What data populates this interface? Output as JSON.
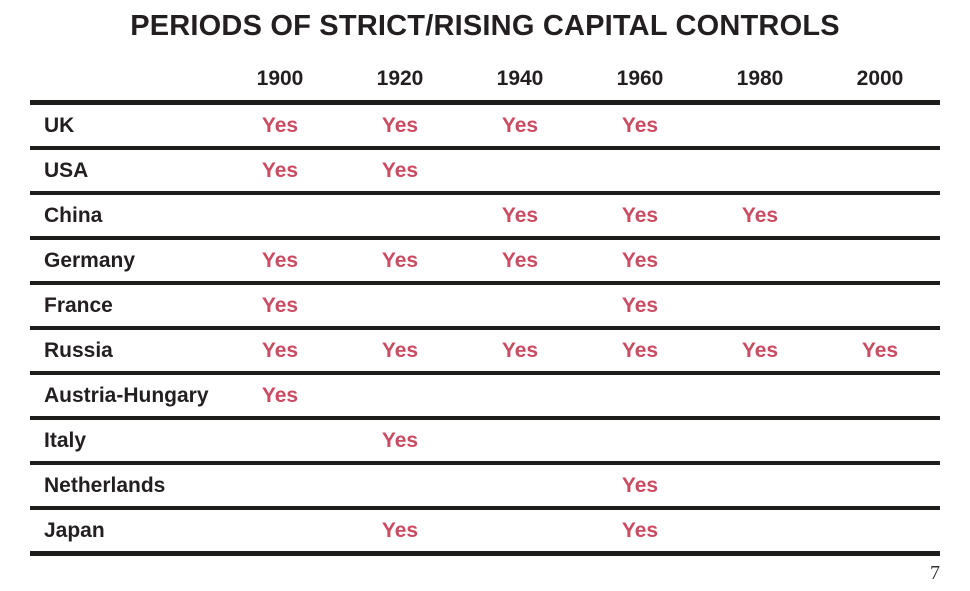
{
  "title": "PERIODS OF STRICT/RISING CAPITAL CONTROLS",
  "page_number": "7",
  "colors": {
    "yes_text": "#cb4b62",
    "heading_text": "#231f20",
    "rule_line": "#1d1d1b",
    "background": "#ffffff"
  },
  "chart_data": {
    "type": "table",
    "title": "PERIODS OF STRICT/RISING CAPITAL CONTROLS",
    "columns": [
      "1900",
      "1920",
      "1940",
      "1960",
      "1980",
      "2000"
    ],
    "value_label": "Yes",
    "rows": [
      {
        "country": "UK",
        "values": [
          "Yes",
          "Yes",
          "Yes",
          "Yes",
          "",
          ""
        ]
      },
      {
        "country": "USA",
        "values": [
          "Yes",
          "Yes",
          "",
          "",
          "",
          ""
        ]
      },
      {
        "country": "China",
        "values": [
          "",
          "",
          "Yes",
          "Yes",
          "Yes",
          ""
        ]
      },
      {
        "country": "Germany",
        "values": [
          "Yes",
          "Yes",
          "Yes",
          "Yes",
          "",
          ""
        ]
      },
      {
        "country": "France",
        "values": [
          "Yes",
          "",
          "",
          "Yes",
          "",
          ""
        ]
      },
      {
        "country": "Russia",
        "values": [
          "Yes",
          "Yes",
          "Yes",
          "Yes",
          "Yes",
          "Yes"
        ]
      },
      {
        "country": "Austria-Hungary",
        "values": [
          "Yes",
          "",
          "",
          "",
          "",
          ""
        ]
      },
      {
        "country": "Italy",
        "values": [
          "",
          "Yes",
          "",
          "",
          "",
          ""
        ]
      },
      {
        "country": "Netherlands",
        "values": [
          "",
          "",
          "",
          "Yes",
          "",
          ""
        ]
      },
      {
        "country": "Japan",
        "values": [
          "",
          "Yes",
          "",
          "Yes",
          "",
          ""
        ]
      }
    ],
    "layout": {
      "grid": "horizontal-rules-only",
      "header_position": "top",
      "country_column_position": "left"
    }
  }
}
